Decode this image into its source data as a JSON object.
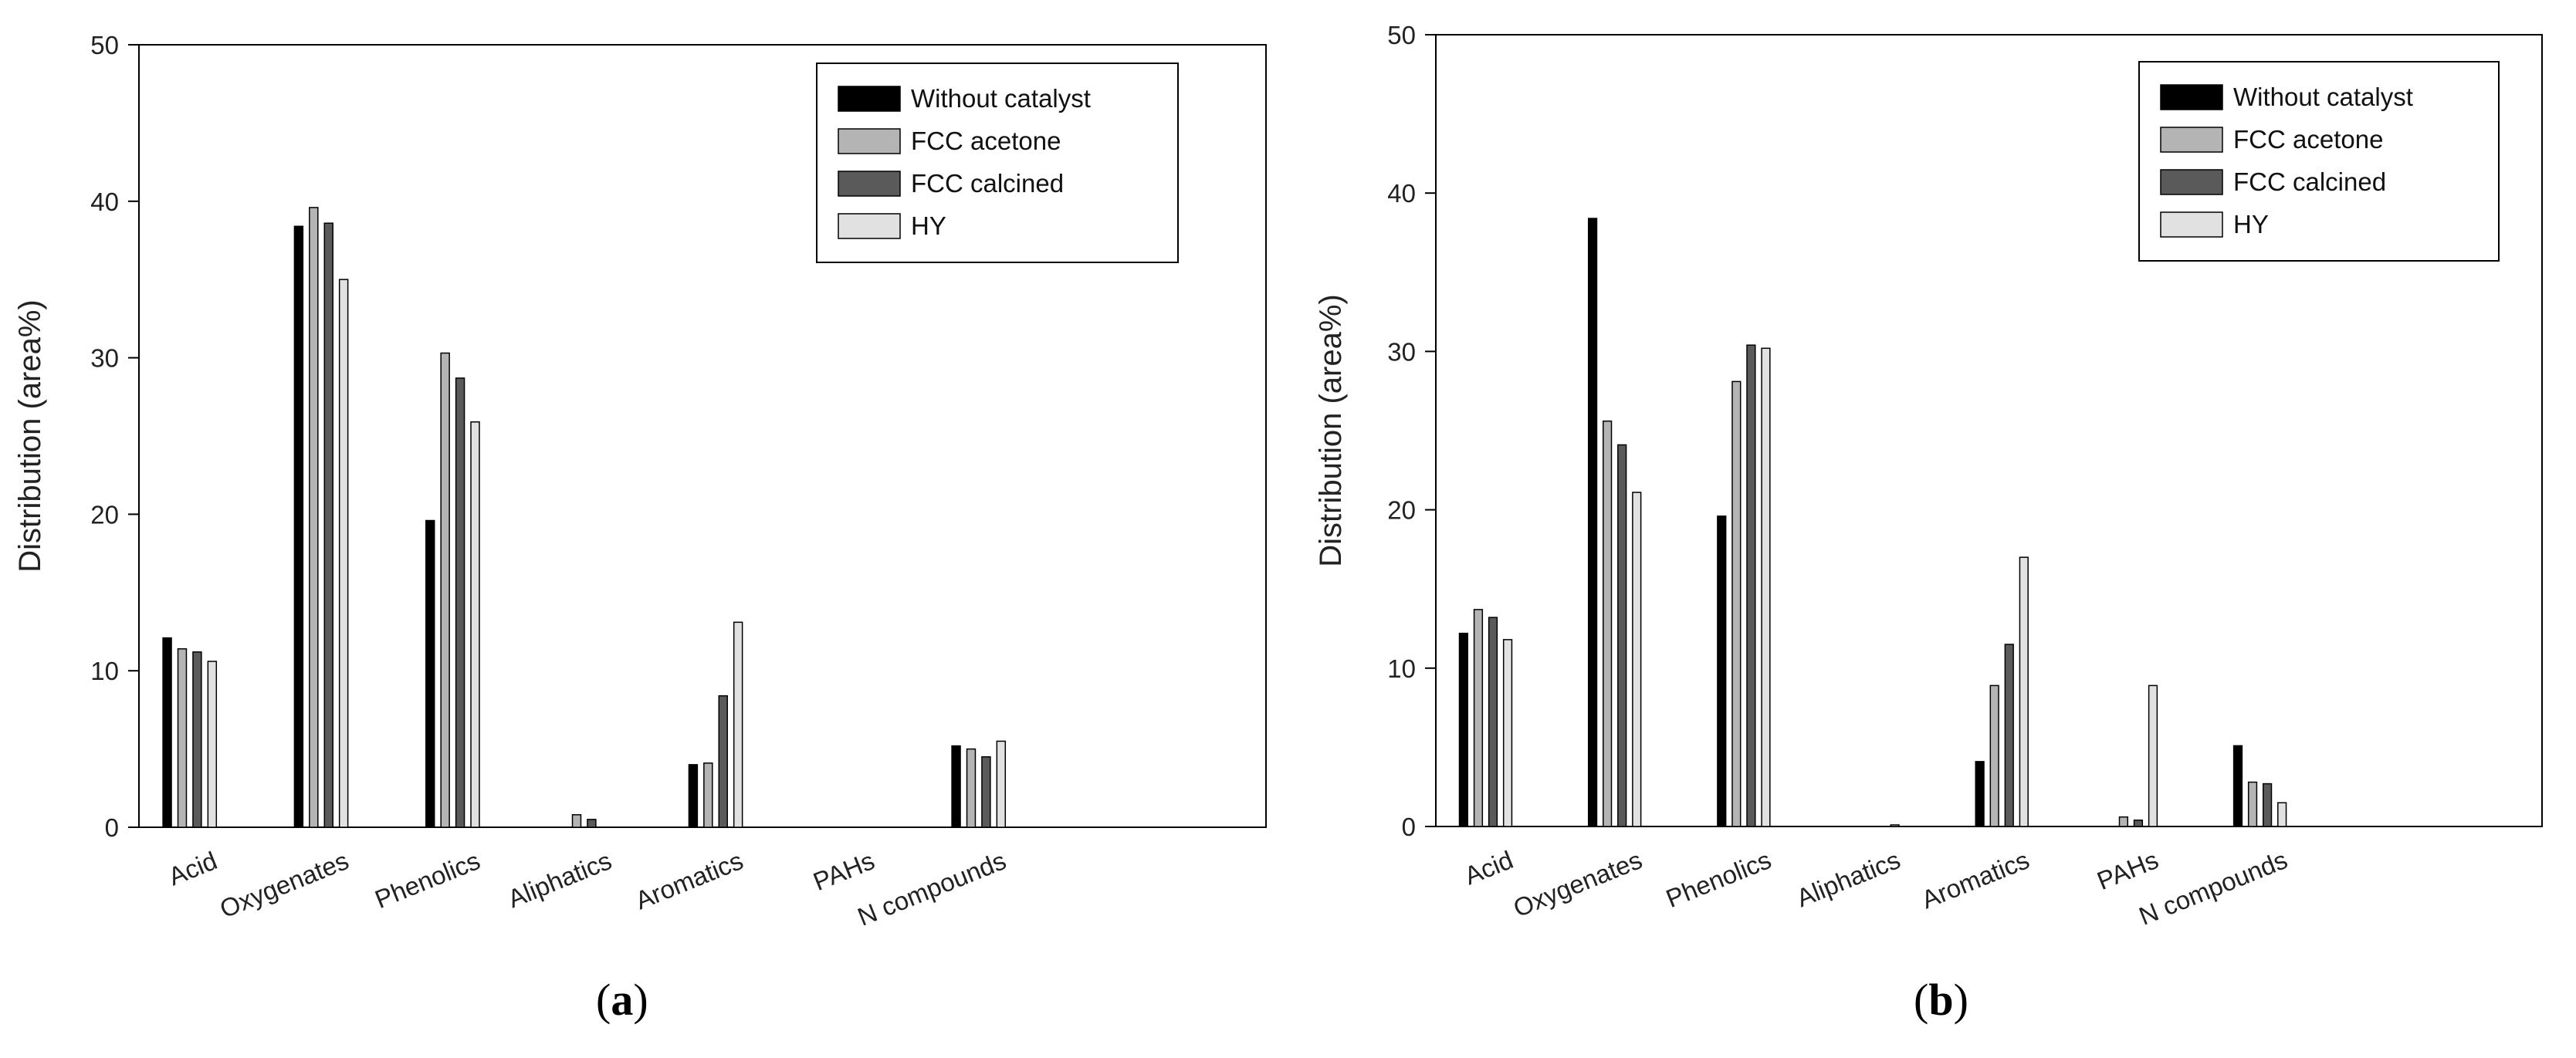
{
  "chart_data": [
    {
      "type": "bar",
      "panel_label": "a",
      "title": "",
      "xlabel": "",
      "ylabel": "Distribution (area%)",
      "ylim": [
        0,
        50
      ],
      "yticks": [
        0,
        10,
        20,
        30,
        40,
        50
      ],
      "legend_position": "top-right",
      "categories": [
        "Acid",
        "Oxygenates",
        "Phenolics",
        "Aliphatics",
        "Aromatics",
        "PAHs",
        "N compounds"
      ],
      "series": [
        {
          "name": "Without catalyst",
          "color": "#000000",
          "values": [
            12.1,
            38.4,
            19.6,
            0,
            4.0,
            0,
            5.2
          ]
        },
        {
          "name": "FCC acetone",
          "color": "#b4b4b4",
          "values": [
            11.4,
            39.6,
            30.3,
            0.8,
            4.1,
            0,
            5.0
          ]
        },
        {
          "name": "FCC calcined",
          "color": "#5a5a5a",
          "values": [
            11.2,
            38.6,
            28.7,
            0.5,
            8.4,
            0,
            4.5
          ]
        },
        {
          "name": "HY",
          "color": "#e1e1e1",
          "values": [
            10.6,
            35.0,
            25.9,
            0,
            13.1,
            0,
            5.5
          ]
        }
      ]
    },
    {
      "type": "bar",
      "panel_label": "b",
      "title": "",
      "xlabel": "",
      "ylabel": "Distribution (area%)",
      "ylim": [
        0,
        50
      ],
      "yticks": [
        0,
        10,
        20,
        30,
        40,
        50
      ],
      "legend_position": "top-right",
      "categories": [
        "Acid",
        "Oxygenates",
        "Phenolics",
        "Aliphatics",
        "Aromatics",
        "PAHs",
        "N compounds"
      ],
      "series": [
        {
          "name": "Without catalyst",
          "color": "#000000",
          "values": [
            12.2,
            38.4,
            19.6,
            0,
            4.1,
            0,
            5.1
          ]
        },
        {
          "name": "FCC acetone",
          "color": "#b4b4b4",
          "values": [
            13.7,
            25.6,
            28.1,
            0,
            8.9,
            0.6,
            2.8
          ]
        },
        {
          "name": "FCC calcined",
          "color": "#5a5a5a",
          "values": [
            13.2,
            24.1,
            30.4,
            0,
            11.5,
            0.4,
            2.7
          ]
        },
        {
          "name": "HY",
          "color": "#e1e1e1",
          "values": [
            11.8,
            21.1,
            30.2,
            0.1,
            17.0,
            8.9,
            1.5
          ]
        }
      ]
    }
  ]
}
